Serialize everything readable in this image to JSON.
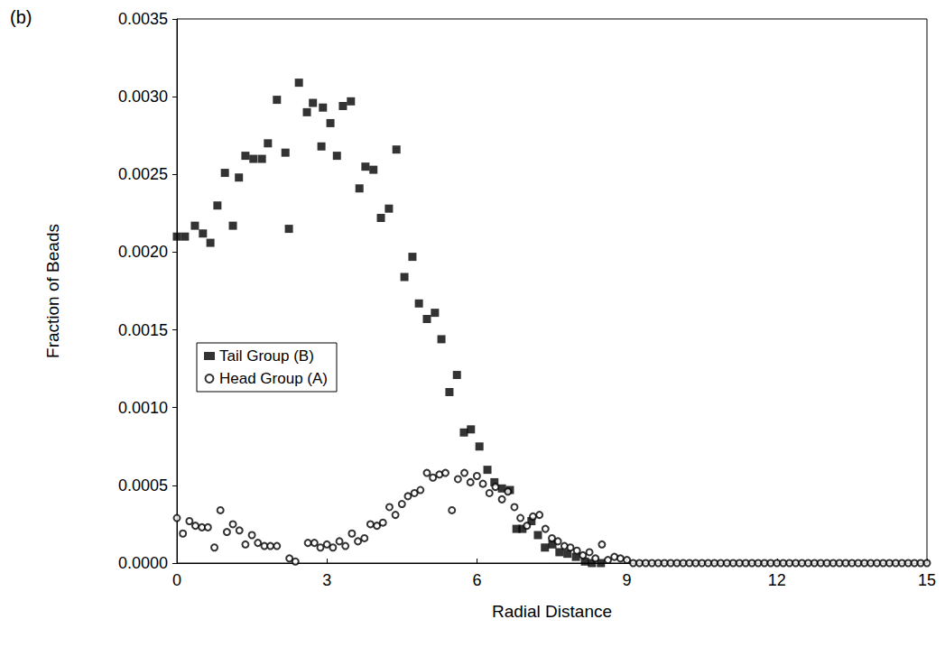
{
  "chart_data": {
    "type": "scatter",
    "title": "(b)",
    "x_label": "Radial Distance",
    "y_label": "Fraction of Beads",
    "xlim": [
      0,
      15
    ],
    "xticks": [
      0,
      3,
      6,
      9,
      12,
      15
    ],
    "ylim": [
      0,
      0.0035
    ],
    "yticks": [
      {
        "value": 0,
        "label": "0.0000"
      },
      0.0005,
      {
        "value": 0.001,
        "label": "0.0010"
      },
      0.0015,
      {
        "value": 0.002,
        "label": "0.0020"
      },
      0.0025,
      {
        "value": 0.003,
        "label": "0.0030"
      },
      0.0035
    ],
    "grid": false,
    "legend": "left",
    "series": [
      {
        "name": "Tail Group (B)",
        "color": "#000000",
        "marker": "square",
        "x": [
          0,
          0.16,
          0.36,
          0.52,
          0.67,
          0.81,
          0.96,
          1.12,
          1.24,
          1.37,
          1.53,
          1.7,
          1.82,
          2,
          2.17,
          2.24,
          2.44,
          2.6,
          2.72,
          2.89,
          2.92,
          3.07,
          3.2,
          3.32,
          3.48,
          3.65,
          3.77,
          3.93,
          4.08,
          4.24,
          4.39,
          4.55,
          4.71,
          4.84,
          5,
          5.16,
          5.29,
          5.45,
          5.6,
          5.74,
          5.88,
          6.05,
          6.21,
          6.35,
          6.5,
          6.66,
          6.79,
          6.91,
          7.09,
          7.22,
          7.36,
          7.51,
          7.65,
          7.81,
          7.98,
          8.16,
          8.3,
          8.48
        ],
        "values": [
          0.0021,
          0.0021,
          0.00217,
          0.00212,
          0.00206,
          0.0023,
          0.00251,
          0.00217,
          0.00248,
          0.00262,
          0.0026,
          0.0026,
          0.0027,
          0.00298,
          0.00264,
          0.00215,
          0.00309,
          0.0029,
          0.00296,
          0.00268,
          0.00293,
          0.00283,
          0.00262,
          0.00294,
          0.00297,
          0.00241,
          0.00255,
          0.00253,
          0.00222,
          0.00228,
          0.00266,
          0.00184,
          0.00197,
          0.00167,
          0.00157,
          0.00161,
          0.00144,
          0.0011,
          0.00121,
          0.00084,
          0.00086,
          0.00075,
          0.0006,
          0.00052,
          0.00048,
          0.00047,
          0.00022,
          0.00022,
          0.00027,
          0.00018,
          0.0001,
          0.00012,
          7e-05,
          6e-05,
          4e-05,
          1e-05,
          0,
          0
        ]
      },
      {
        "name": "Head Group (A)",
        "color": "#000000",
        "marker": "hollow",
        "x": [
          0,
          0.12,
          0.25,
          0.37,
          0.5,
          0.62,
          0.75,
          0.87,
          1,
          1.12,
          1.25,
          1.37,
          1.5,
          1.62,
          1.75,
          1.87,
          2,
          2.25,
          2.37,
          2.62,
          2.75,
          2.87,
          3,
          3.12,
          3.25,
          3.37,
          3.5,
          3.62,
          3.75,
          3.87,
          4,
          4.12,
          4.25,
          4.37,
          4.5,
          4.62,
          4.75,
          4.87,
          5,
          5.12,
          5.25,
          5.37,
          5.5,
          5.62,
          5.75,
          5.87,
          6,
          6.12,
          6.25,
          6.37,
          6.5,
          6.62,
          6.75,
          6.87,
          7,
          7.12,
          7.25,
          7.37,
          7.5,
          7.62,
          7.75,
          7.87,
          8,
          8.12,
          8.25,
          8.37,
          8.5,
          8.62,
          8.75,
          8.87,
          9,
          9.125,
          9.25,
          9.375,
          9.5,
          9.625,
          9.75,
          9.875,
          10,
          10.125,
          10.25,
          10.375,
          10.5,
          10.625,
          10.75,
          10.875,
          11,
          11.125,
          11.25,
          11.375,
          11.5,
          11.625,
          11.75,
          11.875,
          12,
          12.125,
          12.25,
          12.375,
          12.5,
          12.625,
          12.75,
          12.875,
          13,
          13.125,
          13.25,
          13.375,
          13.5,
          13.625,
          13.75,
          13.875,
          14,
          14.125,
          14.25,
          14.375,
          14.5,
          14.625,
          14.75,
          14.875,
          15
        ],
        "values": [
          0.00029,
          0.00019,
          0.00027,
          0.00024,
          0.00023,
          0.00023,
          0.0001,
          0.00034,
          0.0002,
          0.00025,
          0.00021,
          0.00012,
          0.00018,
          0.00013,
          0.00011,
          0.00011,
          0.00011,
          3e-05,
          1e-05,
          0.00013,
          0.00013,
          0.0001,
          0.00012,
          0.0001,
          0.00014,
          0.00011,
          0.00019,
          0.00014,
          0.00016,
          0.00025,
          0.00024,
          0.00026,
          0.00036,
          0.00031,
          0.00038,
          0.00043,
          0.00045,
          0.00047,
          0.00058,
          0.00055,
          0.00057,
          0.00058,
          0.00034,
          0.00054,
          0.00058,
          0.00052,
          0.00056,
          0.00051,
          0.00045,
          0.00049,
          0.00041,
          0.00046,
          0.00036,
          0.00029,
          0.00024,
          0.0003,
          0.00031,
          0.00022,
          0.00016,
          0.00014,
          0.00011,
          0.0001,
          8e-05,
          5e-05,
          7e-05,
          3e-05,
          0.00012,
          2e-05,
          4e-05,
          3e-05,
          2e-05,
          0,
          0,
          0,
          0,
          0,
          0,
          0,
          0,
          0,
          0,
          0,
          0,
          0,
          0,
          0,
          0,
          0,
          0,
          0,
          0,
          0,
          0,
          0,
          0,
          0,
          0,
          0,
          0,
          0,
          0,
          0,
          0,
          0,
          0,
          0,
          0,
          0,
          0,
          0,
          0,
          0,
          0,
          0,
          0,
          0,
          0,
          0,
          0
        ]
      }
    ]
  }
}
